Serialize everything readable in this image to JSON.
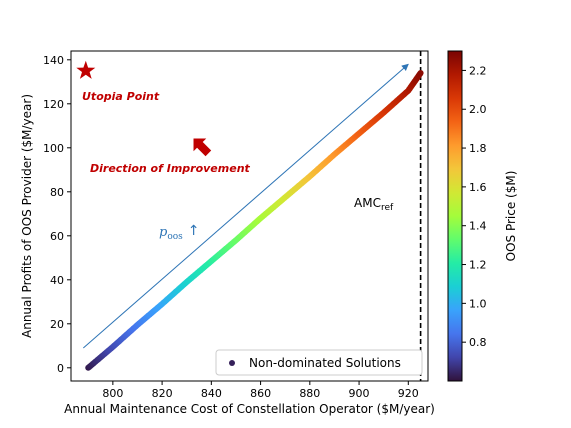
{
  "chart_data": {
    "type": "scatter",
    "xlabel": "Annual Maintenance Cost of Constellation Operator ($M/year)",
    "ylabel": "Annual Profits of OOS Provider ($M/year)",
    "xlim": [
      783,
      928
    ],
    "ylim": [
      -6,
      144
    ],
    "x_ticks": [
      800,
      820,
      840,
      860,
      880,
      900,
      920
    ],
    "y_ticks": [
      0,
      20,
      40,
      60,
      80,
      100,
      120,
      140
    ],
    "grid": false,
    "legend": {
      "location": "lower right",
      "entries": [
        "Non-dominated Solutions"
      ]
    },
    "colorbar": {
      "label": "OOS Price ($M)",
      "range": [
        0.6,
        2.3
      ],
      "ticks": [
        0.8,
        1.0,
        1.2,
        1.4,
        1.6,
        1.8,
        2.0,
        2.2
      ],
      "colormap": "turbo",
      "colors": [
        "#30123b",
        "#4145ab",
        "#4675ed",
        "#39a2fc",
        "#1bcfd4",
        "#24eca6",
        "#61fc6c",
        "#a4fc3b",
        "#d1e834",
        "#f3c63a",
        "#fe9b2d",
        "#f36315",
        "#d93806",
        "#b11901",
        "#7a0402"
      ]
    },
    "series": [
      {
        "name": "Non-dominated Solutions",
        "x": [
          790,
          800,
          810,
          820,
          830,
          840,
          850,
          860,
          870,
          880,
          890,
          900,
          910,
          920,
          925
        ],
        "y": [
          0,
          9.5,
          19.5,
          29,
          39,
          48.5,
          58,
          68,
          77.5,
          87,
          97,
          106.5,
          116,
          126,
          134
        ],
        "price": [
          0.62,
          0.74,
          0.86,
          0.98,
          1.1,
          1.22,
          1.34,
          1.46,
          1.58,
          1.7,
          1.82,
          1.94,
          2.06,
          2.18,
          2.26
        ]
      }
    ],
    "reference_line": {
      "x": 925,
      "label": "AMC",
      "label_subscript": "ref"
    },
    "annotations": {
      "utopia_point": {
        "label": "Utopia Point",
        "x": 789,
        "y": 135,
        "color": "#c00000"
      },
      "direction": {
        "label": "Direction of Improvement",
        "color": "#c00000"
      },
      "price_arrow": {
        "label": "p",
        "label_subscript": "oos",
        "arrow": "↑",
        "color": "#2e75b6"
      },
      "trend_arrow": {
        "from": [
          788,
          9
        ],
        "to": [
          920,
          138
        ],
        "color": "#2e75b6"
      }
    }
  }
}
